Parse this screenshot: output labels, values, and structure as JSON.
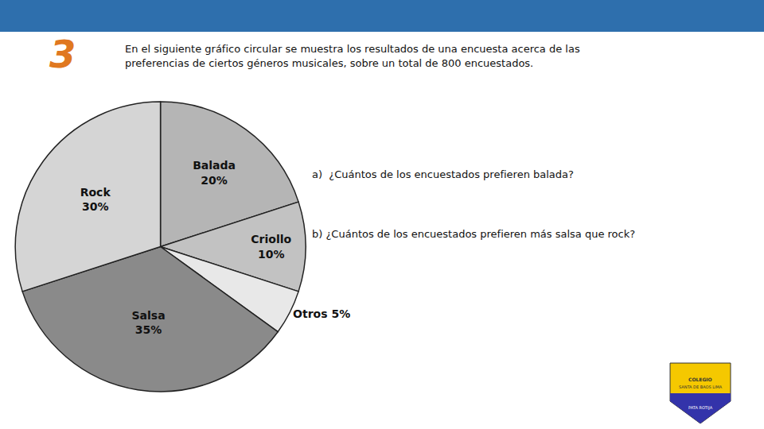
{
  "chart_data": {
    "type": "pie",
    "categories": [
      "Balada",
      "Criollo",
      "Otros",
      "Salsa",
      "Rock"
    ],
    "values": [
      20,
      10,
      5,
      35,
      30
    ],
    "value_labels": [
      "Balada\n20%",
      "Criollo\n10%",
      "Otros 5%",
      "Salsa\n35%",
      "Rock\n30%"
    ],
    "colors": [
      "#b5b5b5",
      "#c2c2c2",
      "#e8e8e8",
      "#8a8a8a",
      "#d5d5d5"
    ],
    "data_labels": true,
    "annotations": [
      "3",
      "En el siguiente gráfico circular se muestra los resultados de una encuesta acerca de las",
      "preferencias de ciertos géneros musicales, sobre un total de 800 encuestados.",
      "a)  ¿Cuántos de los encuestados prefieren balada?",
      "b) ¿Cuántos de los encuestados prefieren más salsa que rock?",
      "COLEGIO",
      "SANTA DE BAOS LIMA",
      "PATA ROTIJA"
    ]
  }
}
